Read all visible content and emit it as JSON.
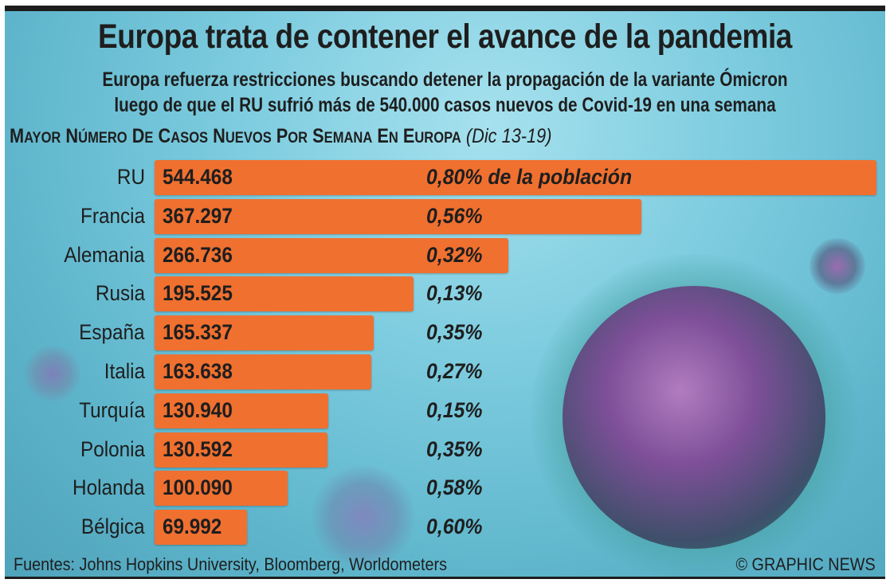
{
  "header": {
    "title": "Europa trata de contener el avance de la pandemia",
    "subtitle_line1": "Europa refuerza restricciones buscando detener la propagación de la variante Ómicron",
    "subtitle_line2": "luego de que el RU sufrió más de 540.000 casos nuevos de Covid-19 en una semana"
  },
  "chart_data": {
    "type": "bar",
    "orientation": "horizontal",
    "title": "Mayor Número de Casos Nuevos por Semana en Europa",
    "title_dates": "(Dic 13-19)",
    "categories": [
      "RU",
      "Francia",
      "Alemania",
      "Rusia",
      "España",
      "Italia",
      "Turquía",
      "Polonia",
      "Holanda",
      "Bélgica"
    ],
    "values": [
      544468,
      367297,
      266736,
      195525,
      165337,
      163638,
      130940,
      130592,
      100090,
      69992
    ],
    "value_labels": [
      "544.468",
      "367.297",
      "266.736",
      "195.525",
      "165.337",
      "163.638",
      "130.940",
      "130.592",
      "100.090",
      "69.992"
    ],
    "percent_labels": [
      "0,80% de la población",
      "0,56%",
      "0,32%",
      "0,13%",
      "0,35%",
      "0,27%",
      "0,15%",
      "0,35%",
      "0,58%",
      "0,60%"
    ],
    "bar_color": "#f07030",
    "xlim": [
      0,
      544468
    ]
  },
  "footer": {
    "source": "Fuentes: Johns Hopkins University, Bloomberg, Worldometers",
    "credit": "© GRAPHIC NEWS"
  }
}
